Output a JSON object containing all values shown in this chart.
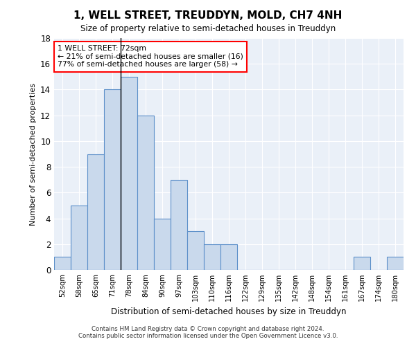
{
  "title": "1, WELL STREET, TREUDDYN, MOLD, CH7 4NH",
  "subtitle": "Size of property relative to semi-detached houses in Treuddyn",
  "xlabel": "Distribution of semi-detached houses by size in Treuddyn",
  "ylabel": "Number of semi-detached properties",
  "categories": [
    "52sqm",
    "58sqm",
    "65sqm",
    "71sqm",
    "78sqm",
    "84sqm",
    "90sqm",
    "97sqm",
    "103sqm",
    "110sqm",
    "116sqm",
    "122sqm",
    "129sqm",
    "135sqm",
    "142sqm",
    "148sqm",
    "154sqm",
    "161sqm",
    "167sqm",
    "174sqm",
    "180sqm"
  ],
  "values": [
    1,
    5,
    9,
    14,
    15,
    12,
    4,
    7,
    3,
    2,
    2,
    0,
    0,
    0,
    0,
    0,
    0,
    0,
    1,
    0,
    1
  ],
  "bar_color": "#c9d9ec",
  "bar_edge_color": "#5b8fc9",
  "property_size": "72sqm",
  "pct_smaller": 21,
  "n_smaller": 16,
  "pct_larger": 77,
  "n_larger": 58,
  "annotation_text_line1": "1 WELL STREET: 72sqm",
  "annotation_text_line2": "← 21% of semi-detached houses are smaller (16)",
  "annotation_text_line3": "77% of semi-detached houses are larger (58) →",
  "vline_position": 3.5,
  "ylim": [
    0,
    18
  ],
  "yticks": [
    0,
    2,
    4,
    6,
    8,
    10,
    12,
    14,
    16,
    18
  ],
  "bg_color": "#eaf0f8",
  "grid_color": "#ffffff",
  "footer_line1": "Contains HM Land Registry data © Crown copyright and database right 2024.",
  "footer_line2": "Contains public sector information licensed under the Open Government Licence v3.0."
}
